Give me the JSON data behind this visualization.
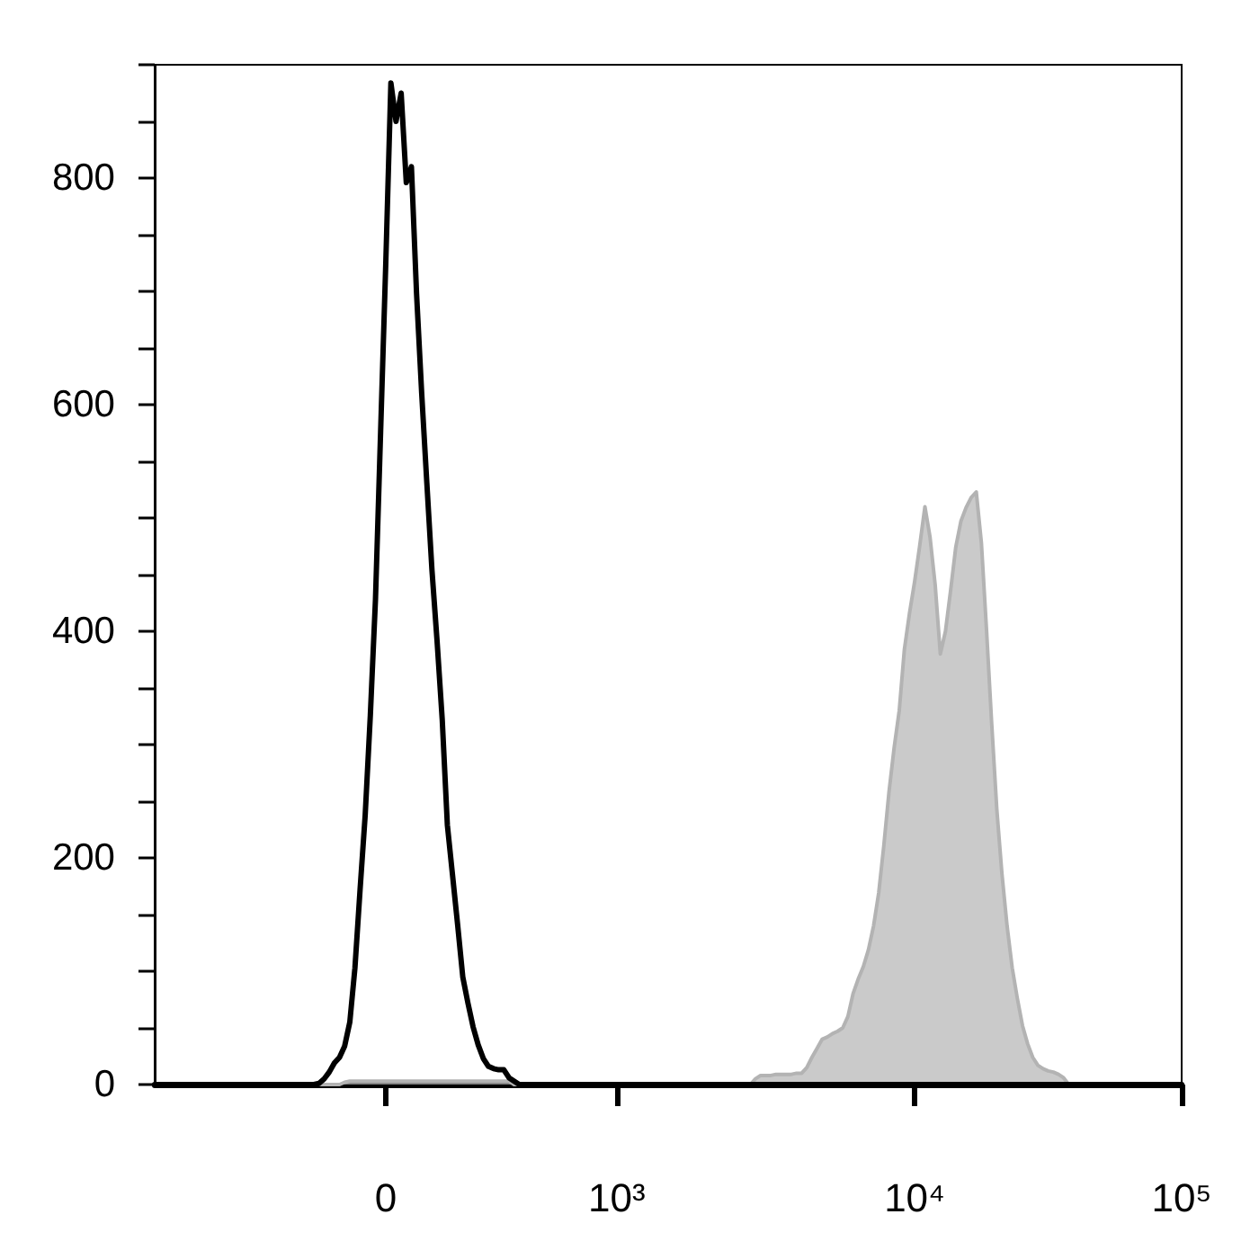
{
  "chart_data": {
    "type": "area",
    "marker": "none",
    "line_style": "solid",
    "categories": [
      null,
      null,
      null,
      null,
      null,
      null,
      null,
      null,
      null,
      null,
      null,
      null,
      null,
      null,
      null,
      null,
      null,
      null,
      null,
      null,
      null,
      null,
      null,
      null,
      null,
      null,
      null,
      null,
      null,
      null,
      null,
      null,
      null,
      null,
      null,
      null,
      null,
      null,
      null,
      null,
      null,
      null,
      null,
      null,
      null,
      "0",
      null,
      null,
      null,
      null,
      null,
      null,
      null,
      null,
      null,
      null,
      null,
      null,
      null,
      null,
      null,
      null,
      null,
      null,
      null,
      null,
      null,
      null,
      null,
      null,
      null,
      null,
      null,
      null,
      null,
      null,
      null,
      null,
      null,
      null,
      null,
      null,
      null,
      null,
      null,
      null,
      null,
      null,
      null,
      null,
      "10³",
      null,
      null,
      null,
      null,
      null,
      null,
      null,
      null,
      null,
      null,
      null,
      null,
      null,
      null,
      null,
      null,
      null,
      null,
      null,
      null,
      null,
      null,
      null,
      null,
      null,
      null,
      null,
      null,
      null,
      null,
      null,
      null,
      null,
      null,
      null,
      null,
      null,
      null,
      null,
      null,
      null,
      null,
      null,
      null,
      null,
      null,
      null,
      null,
      null,
      null,
      null,
      null,
      null,
      null,
      null,
      null,
      null,
      "10⁴",
      null,
      null,
      null,
      null,
      null,
      null,
      null,
      null,
      null,
      null,
      null,
      null,
      null,
      null,
      null,
      null,
      null,
      null,
      null,
      null,
      null,
      null,
      null,
      null,
      null,
      null,
      null,
      null,
      null,
      null,
      null,
      null,
      null,
      null,
      null,
      null,
      null,
      null,
      null,
      null,
      null,
      null,
      null,
      null,
      null,
      null,
      null,
      null,
      null,
      null,
      null,
      "10⁵"
    ],
    "ylim": [
      0,
      900
    ],
    "yticks": [
      0,
      {
        "value": 50,
        "label": null
      },
      {
        "value": 100,
        "label": null
      },
      {
        "value": 150,
        "label": null
      },
      200,
      {
        "value": 250,
        "label": null
      },
      {
        "value": 300,
        "label": null
      },
      {
        "value": 350,
        "label": null
      },
      400,
      {
        "value": 450,
        "label": null
      },
      {
        "value": 500,
        "label": null
      },
      {
        "value": 550,
        "label": null
      },
      600,
      {
        "value": 650,
        "label": null
      },
      {
        "value": 700,
        "label": null
      },
      {
        "value": 750,
        "label": null
      },
      800,
      {
        "value": 850,
        "label": null
      },
      {
        "value": 900,
        "label": null
      }
    ],
    "series": [
      {
        "color": "#b3b3b3",
        "values": [
          0,
          0,
          0,
          0,
          0,
          0,
          0,
          0,
          0,
          0,
          0,
          0,
          0,
          0,
          0,
          0,
          0,
          0,
          0,
          0,
          0,
          0,
          0,
          0,
          0,
          0,
          0,
          0,
          0,
          0,
          0,
          0,
          0,
          0,
          0,
          0,
          0,
          2,
          3,
          3,
          3,
          3,
          3,
          3,
          3,
          3,
          3,
          3,
          3,
          3,
          3,
          3,
          3,
          3,
          3,
          3,
          3,
          3,
          3,
          3,
          3,
          3,
          3,
          3,
          3,
          3,
          3,
          3,
          3,
          3,
          0,
          0,
          0,
          0,
          0,
          0,
          0,
          0,
          0,
          0,
          0,
          0,
          0,
          0,
          0,
          0,
          0,
          0,
          0,
          0,
          0,
          0,
          0,
          0,
          0,
          0,
          0,
          0,
          0,
          0,
          0,
          0,
          0,
          0,
          0,
          0,
          0,
          0,
          0,
          0,
          0,
          0,
          0,
          0,
          0,
          0,
          0,
          5,
          8,
          8,
          8,
          9,
          9,
          9,
          9,
          10,
          10,
          15,
          24,
          32,
          40,
          42,
          45,
          47,
          50,
          60,
          80,
          93,
          104,
          119,
          140,
          169,
          211,
          258,
          297,
          330,
          384,
          416,
          444,
          476,
          510,
          483,
          441,
          380,
          400,
          436,
          474,
          497,
          509,
          518,
          523,
          478,
          401,
          319,
          243,
          186,
          140,
          103,
          76,
          52,
          36,
          24,
          17,
          14,
          12,
          11,
          9,
          6,
          0,
          0,
          0,
          0,
          0,
          0,
          0,
          0,
          0,
          0,
          0,
          0,
          0,
          0,
          0,
          0,
          0,
          0,
          0,
          0,
          0,
          0,
          0
        ]
      },
      {
        "type": "line",
        "color": "#000000",
        "values": [
          0,
          0,
          0,
          0,
          0,
          0,
          0,
          0,
          0,
          0,
          0,
          0,
          0,
          0,
          0,
          0,
          0,
          0,
          0,
          0,
          0,
          0,
          0,
          0,
          0,
          0,
          0,
          0,
          0,
          0,
          0,
          0,
          1,
          5,
          11,
          19,
          24,
          34,
          55,
          103,
          172,
          238,
          326,
          428,
          576,
          724,
          884,
          850,
          875,
          796,
          810,
          698,
          610,
          531,
          454,
          391,
          322,
          229,
          185,
          141,
          95,
          72,
          51,
          35,
          23,
          16,
          14,
          13,
          13,
          6,
          3,
          0,
          0,
          0,
          0,
          0,
          0,
          0,
          0,
          0,
          0,
          0,
          0,
          0,
          0,
          0,
          0,
          0,
          0,
          0,
          0,
          0,
          0,
          0,
          0,
          0,
          0,
          0,
          0,
          0,
          0,
          0,
          0,
          0,
          0,
          0,
          0,
          0,
          0,
          0,
          0,
          0,
          0,
          0,
          0,
          0,
          0,
          0,
          0,
          0,
          0,
          0,
          0,
          0,
          0,
          0,
          0,
          0,
          0,
          0,
          0,
          0,
          0,
          0,
          0,
          0,
          0,
          0,
          0,
          0,
          0,
          0,
          0,
          0,
          0,
          0,
          0,
          0,
          0,
          0,
          0,
          0,
          0,
          0,
          0,
          0,
          0,
          0,
          0,
          0,
          0,
          0,
          0,
          0,
          0,
          0,
          0,
          0,
          0,
          0,
          0,
          0,
          0,
          0,
          0,
          0,
          0,
          0,
          0,
          0,
          0,
          0,
          0,
          0,
          0,
          0,
          0,
          0,
          0,
          0,
          0,
          0,
          0,
          0,
          0,
          0,
          0,
          0,
          0,
          0,
          0
        ]
      }
    ]
  }
}
